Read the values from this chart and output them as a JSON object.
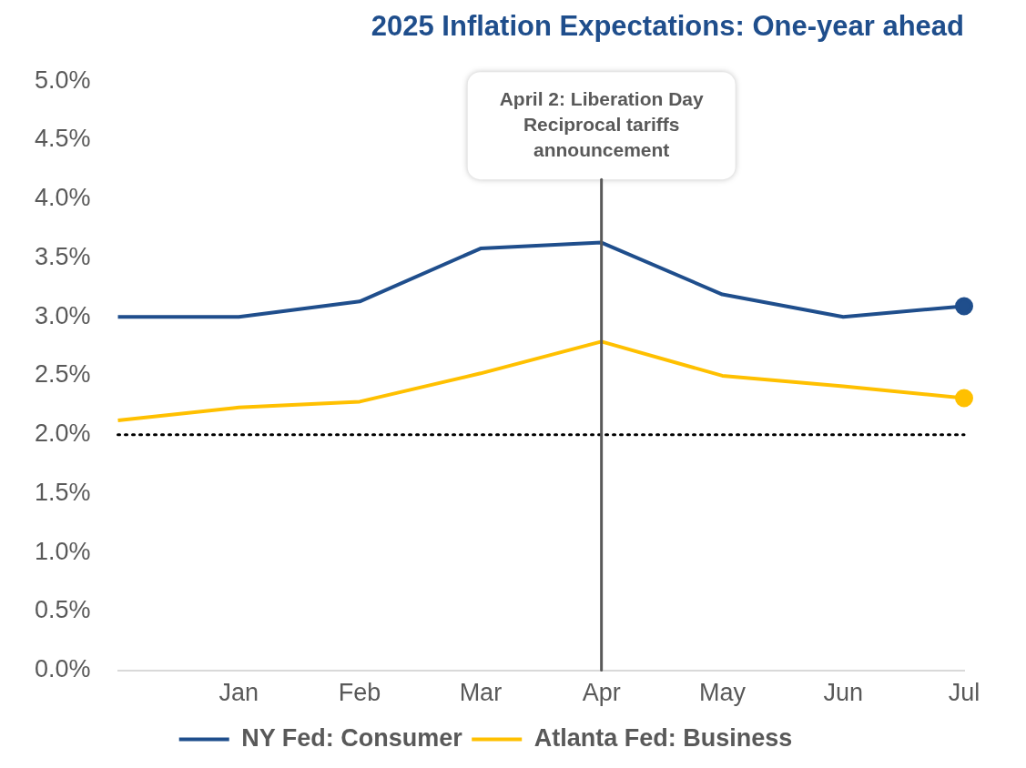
{
  "chart_data": {
    "type": "line",
    "title": "2025 Inflation Expectations: One-year ahead",
    "categories": [
      null,
      "Jan",
      "Feb",
      "Mar",
      "Apr",
      "May",
      "Jun",
      "Jul"
    ],
    "series": [
      {
        "name": "NY Fed: Consumer",
        "color": "#1f4e8c",
        "values": [
          3.0,
          3.0,
          3.13,
          3.58,
          3.63,
          3.19,
          3.0,
          3.09
        ]
      },
      {
        "name": "Atlanta Fed: Business",
        "color": "#ffc000",
        "values": [
          2.12,
          2.23,
          2.28,
          2.52,
          2.79,
          2.5,
          2.41,
          2.31
        ]
      }
    ],
    "ylim": [
      0,
      5
    ],
    "yticks": [
      {
        "value": 0,
        "label": "0.0%"
      },
      {
        "value": 0.5,
        "label": "0.5%"
      },
      {
        "value": 1,
        "label": "1.0%"
      },
      {
        "value": 1.5,
        "label": "1.5%"
      },
      {
        "value": 2,
        "label": "2.0%"
      },
      {
        "value": 2.5,
        "label": "2.5%"
      },
      {
        "value": 3,
        "label": "3.0%"
      },
      {
        "value": 3.5,
        "label": "3.5%"
      },
      {
        "value": 4,
        "label": "4.0%"
      },
      {
        "value": 4.5,
        "label": "4.5%"
      },
      {
        "value": 5,
        "label": "5.0%"
      }
    ],
    "ref_lines": [
      {
        "axis": "y",
        "value": 2,
        "color": "#000000",
        "line_style": "dotted"
      },
      {
        "axis": "x",
        "value": "Apr",
        "label": "April 2: Liberation Day\nReciprocal tariffs\nannouncement",
        "color": "#595959",
        "line_style": "solid"
      }
    ],
    "grid": false,
    "legend": "bottom",
    "line_style": "solid"
  }
}
